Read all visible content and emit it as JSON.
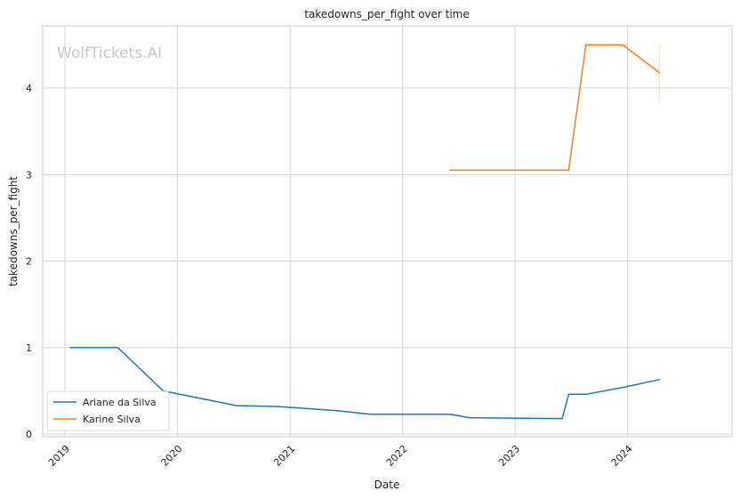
{
  "chart_data": {
    "type": "line",
    "title": "takedowns_per_fight over time",
    "xlabel": "Date",
    "ylabel": "takedowns_per_fight",
    "watermark": "WolfTickets.AI",
    "x_tick_labels": [
      "2019",
      "2020",
      "2021",
      "2022",
      "2023",
      "2024"
    ],
    "y_tick_labels": [
      "0",
      "1",
      "2",
      "3",
      "4"
    ],
    "ylim": [
      -0.03,
      4.72
    ],
    "xlim": [
      "2018-10-21",
      "2024-12-05"
    ],
    "grid": true,
    "legend_position": "lower-left",
    "series": [
      {
        "name": "Ariane da Silva",
        "color": "#1f77b4",
        "points": [
          {
            "x": "2019-01-19",
            "y": 1.0
          },
          {
            "x": "2019-06-22",
            "y": 1.0
          },
          {
            "x": "2019-11-16",
            "y": 0.5
          },
          {
            "x": "2020-07-11",
            "y": 0.33
          },
          {
            "x": "2020-11-21",
            "y": 0.32
          },
          {
            "x": "2021-06-05",
            "y": 0.27
          },
          {
            "x": "2021-09-18",
            "y": 0.23
          },
          {
            "x": "2022-06-04",
            "y": 0.23
          },
          {
            "x": "2022-08-06",
            "y": 0.19
          },
          {
            "x": "2023-06-03",
            "y": 0.18
          },
          {
            "x": "2023-06-24",
            "y": 0.46
          },
          {
            "x": "2023-08-19",
            "y": 0.46
          },
          {
            "x": "2023-12-16",
            "y": 0.54
          },
          {
            "x": "2024-04-13",
            "y": 0.63
          }
        ]
      },
      {
        "name": "Karine Silva",
        "color": "#ff7f0e",
        "points": [
          {
            "x": "2022-06-04",
            "y": 3.05
          },
          {
            "x": "2023-06-24",
            "y": 3.05
          },
          {
            "x": "2023-08-19",
            "y": 4.5
          },
          {
            "x": "2023-12-16",
            "y": 4.5
          },
          {
            "x": "2024-04-13",
            "y": 4.18
          }
        ],
        "error_band": {
          "x": "2024-04-13",
          "low": 3.85,
          "high": 4.5
        }
      }
    ]
  }
}
